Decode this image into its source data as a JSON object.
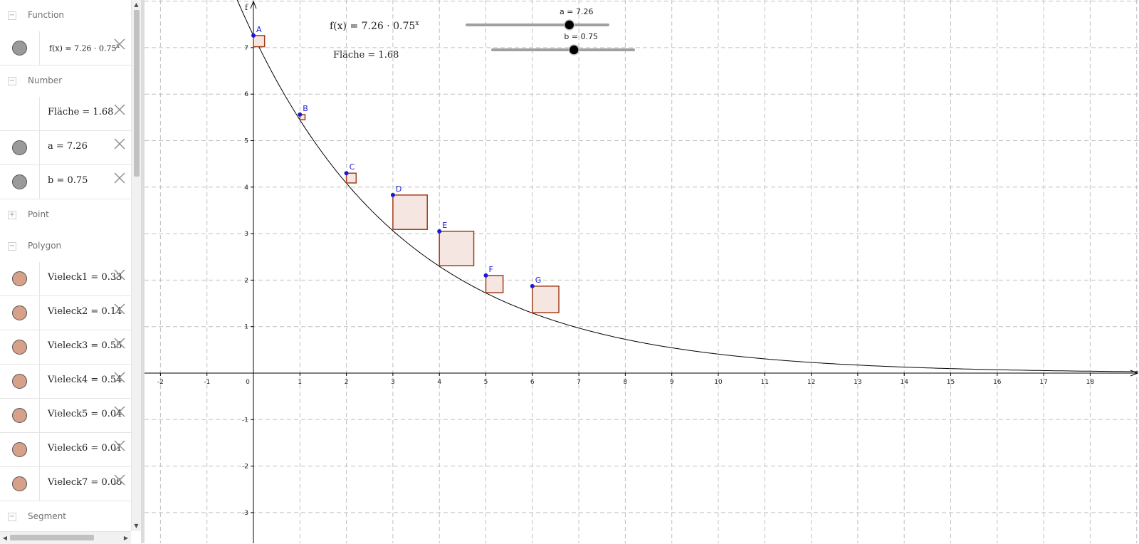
{
  "algebra": {
    "sections": [
      {
        "type": "category",
        "name": "Function",
        "toggle": "−"
      },
      {
        "type": "item",
        "text": "f(x) = 7.26 · 0.75",
        "exp": "x",
        "marble": "#9a9a9a",
        "small": true
      },
      {
        "type": "category",
        "name": "Number",
        "toggle": "−"
      },
      {
        "type": "item",
        "text": "Fläche = 1.68",
        "marble": "",
        "small": false
      },
      {
        "type": "item",
        "text": "a = 7.26",
        "marble": "#9a9a9a",
        "small": false
      },
      {
        "type": "item",
        "text": "b = 0.75",
        "marble": "#9a9a9a",
        "small": false
      },
      {
        "type": "category",
        "name": "Point",
        "toggle": "+"
      },
      {
        "type": "category",
        "name": "Polygon",
        "toggle": "−"
      },
      {
        "type": "item",
        "text": "Vieleck1 = 0.33",
        "marble": "#d7a088",
        "small": false
      },
      {
        "type": "item",
        "text": "Vieleck2 = 0.14",
        "marble": "#d7a088",
        "small": false
      },
      {
        "type": "item",
        "text": "Vieleck3 = 0.55",
        "marble": "#d7a088",
        "small": false
      },
      {
        "type": "item",
        "text": "Vieleck4 = 0.54",
        "marble": "#d7a088",
        "small": false
      },
      {
        "type": "item",
        "text": "Vieleck5 = 0.04",
        "marble": "#d7a088",
        "small": false
      },
      {
        "type": "item",
        "text": "Vieleck6 = 0.01",
        "marble": "#d7a088",
        "small": false
      },
      {
        "type": "item",
        "text": "Vieleck7 = 0.06",
        "marble": "#d7a088",
        "small": false
      },
      {
        "type": "category",
        "name": "Segment",
        "toggle": "−"
      }
    ]
  },
  "graphics": {
    "function_label": "f(x) = 7.26 · 0.75",
    "function_exp": "x",
    "function_name": "f",
    "area_label": "Fläche = 1.68",
    "a": {
      "name": "a",
      "value": 7.26,
      "label": "a = 7.26",
      "min": 0,
      "max": 10
    },
    "b": {
      "name": "b",
      "value": 0.75,
      "label": "b = 0.75",
      "min": 0,
      "max": 1.3
    },
    "x_ticks": [
      -2,
      -1,
      0,
      1,
      2,
      3,
      4,
      5,
      6,
      7,
      8,
      9,
      10,
      11,
      12,
      13,
      14,
      15,
      16,
      17,
      18
    ],
    "y_ticks": [
      -3,
      -2,
      -1,
      1,
      2,
      3,
      4,
      5,
      6,
      7
    ],
    "points": [
      {
        "name": "A",
        "x": 0,
        "y": 7.26
      },
      {
        "name": "B",
        "x": 1,
        "y": 5.56
      },
      {
        "name": "C",
        "x": 2,
        "y": 4.3
      },
      {
        "name": "D",
        "x": 3,
        "y": 3.83
      },
      {
        "name": "E",
        "x": 4,
        "y": 3.05
      },
      {
        "name": "F",
        "x": 5,
        "y": 2.1
      },
      {
        "name": "G",
        "x": 6,
        "y": 1.87
      }
    ],
    "squares": [
      {
        "name": "Vieleck1",
        "x": 0,
        "y": 7.26,
        "side": 0.24
      },
      {
        "name": "Vieleck2",
        "x": 1,
        "y": 5.56,
        "side": 0.11
      },
      {
        "name": "Vieleck3",
        "x": 2,
        "y": 4.3,
        "side": 0.21
      },
      {
        "name": "Vieleck4",
        "x": 3,
        "y": 3.83,
        "side": 0.74
      },
      {
        "name": "Vieleck5",
        "x": 4,
        "y": 3.05,
        "side": 0.74
      },
      {
        "name": "Vieleck6",
        "x": 5,
        "y": 2.1,
        "side": 0.37
      },
      {
        "name": "Vieleck7",
        "x": 6,
        "y": 1.87,
        "side": 0.57
      }
    ],
    "colors": {
      "point": "#1a1ad6",
      "polygon_stroke": "#a0401c",
      "polygon_fill": "#f5e6e1",
      "curve": "#000000",
      "grid": "#c0c0c0",
      "slider_track": "#a0a0a0"
    }
  }
}
